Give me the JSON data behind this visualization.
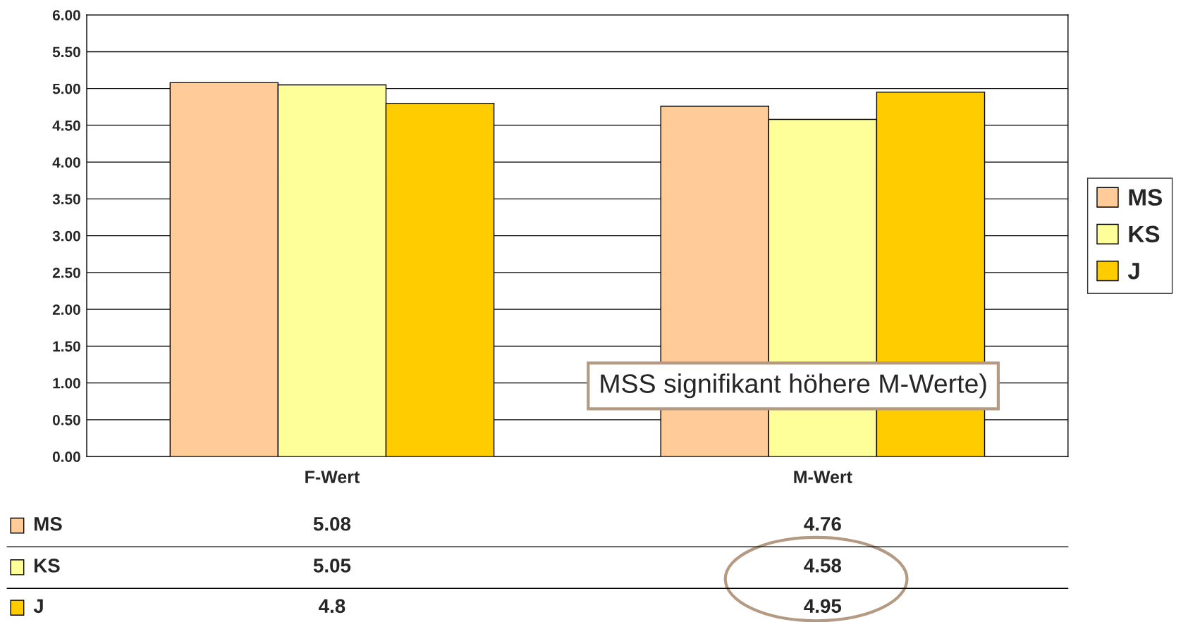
{
  "chart_data": {
    "type": "bar",
    "categories": [
      "F-Wert",
      "M-Wert"
    ],
    "series": [
      {
        "name": "MS",
        "color": "#ffcc99",
        "values": [
          5.08,
          4.76
        ]
      },
      {
        "name": "KS",
        "color": "#ffff99",
        "values": [
          5.05,
          4.58
        ]
      },
      {
        "name": "J",
        "color": "#ffcc00",
        "values": [
          4.8,
          4.95
        ]
      }
    ],
    "ylim": [
      0,
      6
    ],
    "yticks": [
      {
        "value": 0,
        "label": "0.00"
      },
      {
        "value": 0.5,
        "label": "0.50"
      },
      {
        "value": 1,
        "label": "1.00"
      },
      {
        "value": 1.5,
        "label": "1.50"
      },
      {
        "value": 2,
        "label": "2.00"
      },
      {
        "value": 2.5,
        "label": "2.50"
      },
      {
        "value": 3,
        "label": "3.00"
      },
      {
        "value": 3.5,
        "label": "3.50"
      },
      {
        "value": 4,
        "label": "4.00"
      },
      {
        "value": 4.5,
        "label": "4.50"
      },
      {
        "value": 5,
        "label": "5.00"
      },
      {
        "value": 5.5,
        "label": "5.50"
      },
      {
        "value": 6,
        "label": "6.00"
      }
    ],
    "grid": "y",
    "legend": "right",
    "data_labels": true,
    "annotations": [
      "MSS signifikant höhere M-Werte)"
    ]
  }
}
